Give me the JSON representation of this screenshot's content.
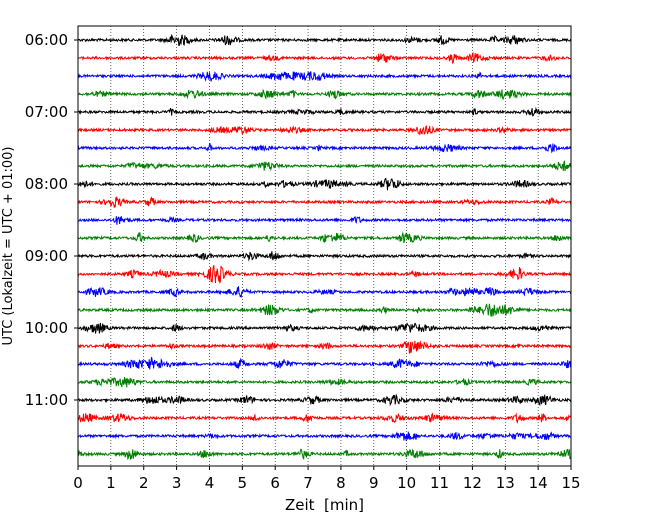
{
  "chart_data": {
    "type": "line",
    "title": "",
    "xlabel": "Zeit  [min]",
    "ylabel": "UTC (Lokalzeit = UTC + 01:00)",
    "xlim": [
      0,
      15
    ],
    "x_ticks": [
      "0",
      "1",
      "2",
      "3",
      "4",
      "5",
      "6",
      "7",
      "8",
      "9",
      "10",
      "11",
      "12",
      "13",
      "14",
      "15"
    ],
    "y_ticks": [
      "06:00",
      "07:00",
      "08:00",
      "09:00",
      "10:00",
      "11:00"
    ],
    "grid": "vertical dotted",
    "trace_colors": [
      "#000000",
      "#ff0000",
      "#0000ff",
      "#007f00"
    ],
    "traces": [
      {
        "start": "06:00",
        "color": "#000000"
      },
      {
        "start": "06:15",
        "color": "#ff0000"
      },
      {
        "start": "06:30",
        "color": "#0000ff"
      },
      {
        "start": "06:45",
        "color": "#007f00"
      },
      {
        "start": "07:00",
        "color": "#000000"
      },
      {
        "start": "07:15",
        "color": "#ff0000"
      },
      {
        "start": "07:30",
        "color": "#0000ff"
      },
      {
        "start": "07:45",
        "color": "#007f00"
      },
      {
        "start": "08:00",
        "color": "#000000"
      },
      {
        "start": "08:15",
        "color": "#ff0000"
      },
      {
        "start": "08:30",
        "color": "#0000ff"
      },
      {
        "start": "08:45",
        "color": "#007f00"
      },
      {
        "start": "09:00",
        "color": "#000000"
      },
      {
        "start": "09:15",
        "color": "#ff0000"
      },
      {
        "start": "09:30",
        "color": "#0000ff"
      },
      {
        "start": "09:45",
        "color": "#007f00"
      },
      {
        "start": "10:00",
        "color": "#000000"
      },
      {
        "start": "10:15",
        "color": "#ff0000"
      },
      {
        "start": "10:30",
        "color": "#0000ff"
      },
      {
        "start": "10:45",
        "color": "#007f00"
      },
      {
        "start": "11:00",
        "color": "#000000"
      },
      {
        "start": "11:15",
        "color": "#ff0000"
      },
      {
        "start": "11:30",
        "color": "#0000ff"
      },
      {
        "start": "11:45",
        "color": "#007f00"
      }
    ]
  }
}
